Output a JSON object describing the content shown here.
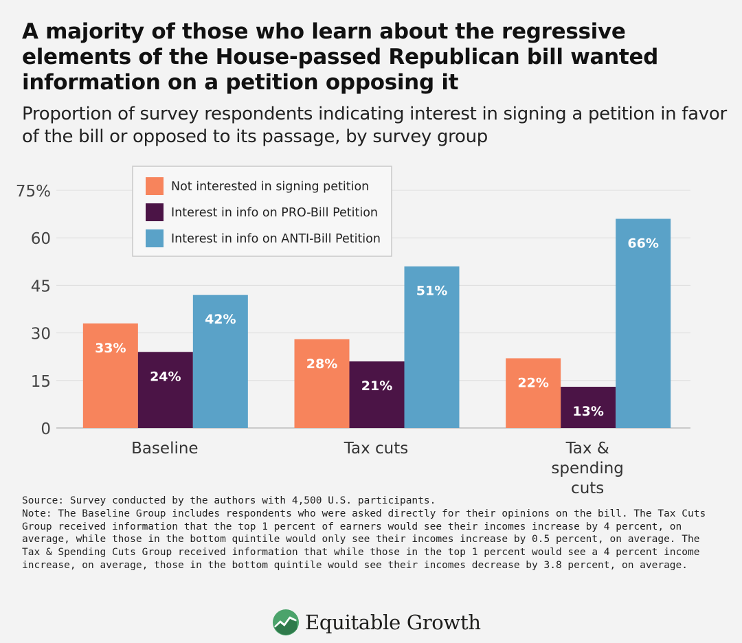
{
  "title": "A majority of those who learn about the regressive elements of the House-passed Republican bill wanted information on a petition opposing it",
  "subtitle": "Proportion of survey respondents indicating interest in signing a petition in favor of the bill or opposed to its passage, by survey group",
  "chart_data": {
    "type": "bar",
    "categories": [
      "Baseline",
      "Tax cuts",
      "Tax & spending cuts"
    ],
    "category_lines": [
      [
        "Baseline"
      ],
      [
        "Tax cuts"
      ],
      [
        "Tax &",
        "spending",
        "cuts"
      ]
    ],
    "series": [
      {
        "name": "Not interested in signing petition",
        "color": "#f7845c",
        "values": [
          33,
          28,
          22
        ],
        "labels": [
          "33%",
          "28%",
          "22%"
        ]
      },
      {
        "name": "Interest in info on PRO-Bill Petition",
        "color": "#4b1446",
        "values": [
          24,
          21,
          13
        ],
        "labels": [
          "24%",
          "21%",
          "13%"
        ]
      },
      {
        "name": "Interest in info on ANTI-Bill Petition",
        "color": "#5aa2c8",
        "values": [
          42,
          51,
          66
        ],
        "labels": [
          "42%",
          "51%",
          "66%"
        ]
      }
    ],
    "ylim": [
      0,
      75
    ],
    "yticks": [
      0,
      15,
      30,
      45,
      60,
      75
    ],
    "ytick_labels": [
      "0",
      "15",
      "30",
      "45",
      "60",
      "75%"
    ],
    "xlabel": "",
    "ylabel": "",
    "legend_position": "top-left",
    "grid": true
  },
  "source": "Source: Survey conducted by the authors with 4,500 U.S. participants.",
  "note": "Note: The Baseline Group includes respondents who were asked directly for their opinions on the bill.  The Tax Cuts Group received information that the top 1 percent of earners would see their incomes increase by 4 percent, on average, while those in the bottom quintile would only see their incomes increase by 0.5 percent, on average. The Tax & Spending Cuts Group received information that while those in the top 1 percent would see a 4 percent income increase, on average, those in the bottom quintile would see their incomes decrease by 3.8 percent, on average.",
  "logo": {
    "text": "Equitable Growth",
    "icon": "growth-chart-logo-icon",
    "color": "#4ba36b"
  }
}
